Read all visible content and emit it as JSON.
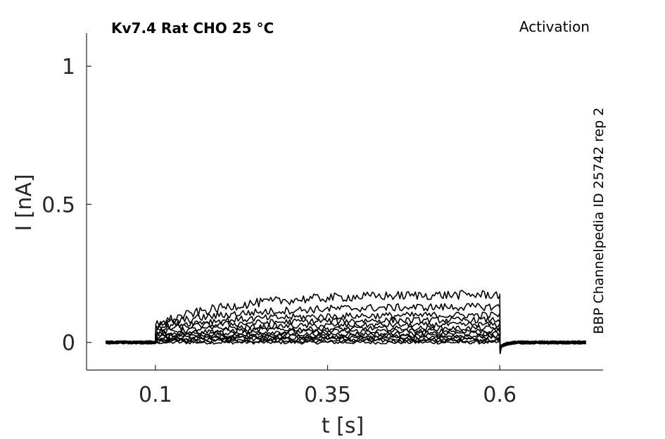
{
  "title": "Kv7.4  Rat  CHO  25 °C",
  "protocol": "Activation",
  "source_label": "BBP Channelpedia ID 25742 rep 2",
  "chart_data": {
    "type": "line",
    "xlabel": "t [s]",
    "ylabel": "I [nA]",
    "xlim": [
      0.0,
      0.75
    ],
    "ylim": [
      -0.1,
      1.12
    ],
    "xticks": [
      0.1,
      0.35,
      0.6
    ],
    "xtick_labels": [
      "0.1",
      "0.35",
      "0.6"
    ],
    "yticks": [
      0,
      0.5,
      1
    ],
    "ytick_labels": [
      "0",
      "0.5",
      "1"
    ],
    "grid": false,
    "line_color": "#000000",
    "pulse": {
      "start": 0.1,
      "end": 0.6,
      "record_start": 0.028,
      "record_end": 0.725
    },
    "series": [
      {
        "onset": 0.0,
        "steady": 0.0
      },
      {
        "onset": 0.004,
        "steady": 0.006
      },
      {
        "onset": 0.008,
        "steady": 0.012
      },
      {
        "onset": 0.012,
        "steady": 0.018
      },
      {
        "onset": 0.016,
        "steady": 0.024
      },
      {
        "onset": 0.02,
        "steady": 0.032
      },
      {
        "onset": 0.025,
        "steady": 0.042
      },
      {
        "onset": 0.03,
        "steady": 0.052
      },
      {
        "onset": 0.036,
        "steady": 0.065
      },
      {
        "onset": 0.045,
        "steady": 0.082
      },
      {
        "onset": 0.055,
        "steady": 0.1
      },
      {
        "onset": 0.06,
        "steady": 0.13
      },
      {
        "onset": 0.065,
        "steady": 0.175
      }
    ]
  }
}
